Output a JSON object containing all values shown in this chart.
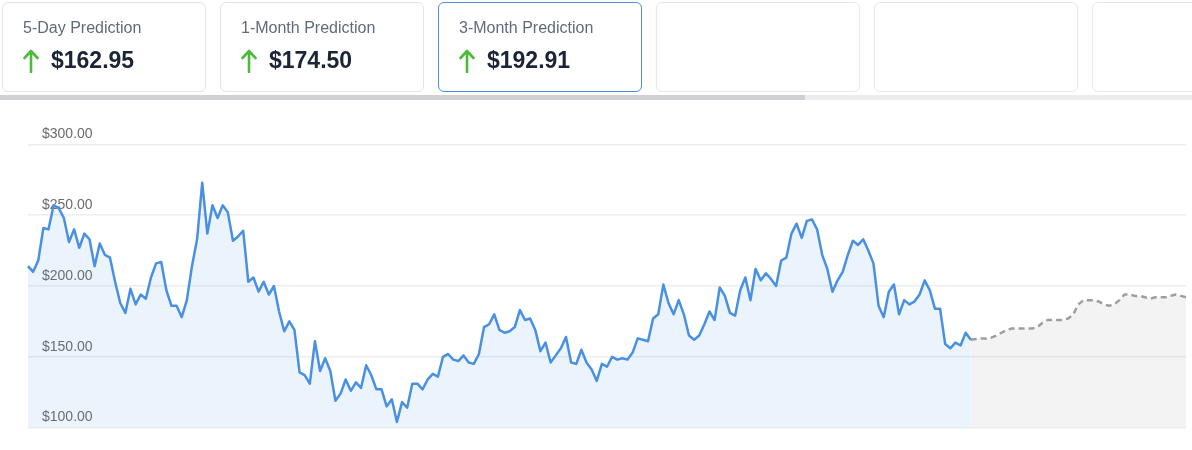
{
  "chart_data": {
    "type": "area",
    "annotations": [
      "5-Day Prediction",
      "$162.95",
      "1-Month Prediction",
      "$174.50",
      "3-Month Prediction",
      "$192.91"
    ],
    "categories": [
      null,
      null,
      null,
      null,
      null,
      null,
      null,
      null,
      null,
      null,
      null,
      null,
      null,
      null,
      null,
      null,
      null,
      null,
      null,
      null,
      null,
      null,
      null,
      null,
      null,
      null,
      null,
      null,
      null,
      null,
      null,
      null,
      null,
      null,
      null,
      null,
      null,
      null,
      null,
      null,
      null,
      null,
      null,
      null,
      null,
      null,
      null,
      null,
      null,
      null,
      null,
      null,
      null,
      null,
      null,
      null,
      null,
      null,
      null,
      null,
      null,
      null,
      null,
      null,
      null,
      null,
      null,
      null,
      null,
      null,
      null,
      null,
      null,
      null,
      null,
      null,
      null,
      null,
      null,
      null,
      null,
      null,
      null,
      null,
      null,
      null,
      null,
      null,
      null,
      null,
      null,
      null,
      null,
      null,
      null,
      null,
      null,
      null,
      null,
      null,
      null,
      null,
      null,
      null,
      null,
      null,
      null,
      null,
      null,
      null,
      null,
      null,
      null,
      null,
      null,
      null,
      null,
      null,
      null,
      null,
      null,
      null,
      null,
      null,
      null,
      null,
      null,
      null,
      null,
      null,
      null,
      null,
      null,
      null,
      null,
      null,
      null,
      null,
      null,
      null,
      null,
      null,
      null,
      null,
      null,
      null,
      null,
      null,
      null,
      null,
      null,
      null,
      null,
      null,
      null,
      null,
      null,
      null,
      null,
      null,
      null,
      null,
      null,
      null,
      null,
      null,
      null,
      null,
      null,
      null,
      null,
      null,
      null,
      null,
      null,
      null,
      null,
      null,
      null,
      null,
      null,
      null,
      null,
      null,
      null,
      null,
      null,
      null,
      null,
      null,
      null,
      null,
      null,
      null,
      null,
      null,
      null,
      null,
      null,
      null,
      null,
      null,
      null,
      null,
      null,
      null,
      null,
      null,
      null,
      null,
      null,
      null,
      null,
      null,
      null,
      null,
      null,
      null,
      null,
      null,
      null,
      null,
      null,
      null,
      null,
      null,
      null
    ],
    "series": [
      {
        "color": "#4a90e2",
        "values": [
          214,
          210,
          218,
          241,
          240,
          257,
          255,
          248,
          231,
          240,
          227,
          237,
          233,
          214,
          230,
          222,
          220,
          203,
          188,
          181,
          198,
          187,
          194,
          191,
          206,
          216,
          217,
          197,
          186,
          186,
          178,
          190,
          214,
          233,
          273,
          237,
          257,
          248,
          257,
          252,
          232,
          235,
          239,
          203,
          206,
          196,
          203,
          194,
          200,
          182,
          168,
          175,
          169,
          139,
          137,
          131,
          161,
          140,
          149,
          140,
          119,
          124,
          134,
          126,
          132,
          128,
          144,
          137,
          127,
          127,
          115,
          120,
          104,
          118,
          114,
          131,
          131,
          127,
          134,
          138,
          136,
          150,
          152,
          148,
          147,
          151,
          146,
          145,
          152,
          171,
          173,
          180,
          169,
          167,
          168,
          171,
          183,
          176,
          177,
          169,
          154,
          160,
          146,
          151,
          156,
          164,
          146,
          145,
          155,
          146,
          141,
          133,
          145,
          143,
          150,
          148,
          149,
          148,
          153,
          163,
          162,
          161,
          177,
          180,
          201,
          188,
          180,
          190,
          180,
          165,
          162,
          165,
          173,
          182,
          176,
          199,
          193,
          181,
          179,
          197,
          206,
          190,
          212,
          204,
          209,
          205,
          200,
          218,
          220,
          237,
          244,
          234,
          246,
          247,
          240,
          222,
          212,
          196,
          204,
          210,
          222,
          232,
          229,
          233,
          225,
          216,
          186,
          178,
          196,
          201,
          180,
          190,
          187,
          189,
          194,
          204,
          197,
          184,
          184,
          159,
          156,
          160,
          158,
          167,
          162,
          null,
          null,
          null,
          null,
          null,
          null,
          null,
          null,
          null,
          null,
          null,
          null,
          null,
          null,
          null,
          null,
          null,
          null,
          null,
          null,
          null,
          null,
          null,
          null,
          null,
          null,
          null,
          null,
          null,
          null,
          null,
          null,
          null,
          null,
          null,
          null,
          null,
          null,
          null,
          null,
          null,
          null
        ]
      },
      {
        "color": "#9e9e9e",
        "line_style": "dashed",
        "values": [
          null,
          null,
          null,
          null,
          null,
          null,
          null,
          null,
          null,
          null,
          null,
          null,
          null,
          null,
          null,
          null,
          null,
          null,
          null,
          null,
          null,
          null,
          null,
          null,
          null,
          null,
          null,
          null,
          null,
          null,
          null,
          null,
          null,
          null,
          null,
          null,
          null,
          null,
          null,
          null,
          null,
          null,
          null,
          null,
          null,
          null,
          null,
          null,
          null,
          null,
          null,
          null,
          null,
          null,
          null,
          null,
          null,
          null,
          null,
          null,
          null,
          null,
          null,
          null,
          null,
          null,
          null,
          null,
          null,
          null,
          null,
          null,
          null,
          null,
          null,
          null,
          null,
          null,
          null,
          null,
          null,
          null,
          null,
          null,
          null,
          null,
          null,
          null,
          null,
          null,
          null,
          null,
          null,
          null,
          null,
          null,
          null,
          null,
          null,
          null,
          null,
          null,
          null,
          null,
          null,
          null,
          null,
          null,
          null,
          null,
          null,
          null,
          null,
          null,
          null,
          null,
          null,
          null,
          null,
          null,
          null,
          null,
          null,
          null,
          null,
          null,
          null,
          null,
          null,
          null,
          null,
          null,
          null,
          null,
          null,
          null,
          null,
          null,
          null,
          null,
          null,
          null,
          null,
          null,
          null,
          null,
          null,
          null,
          null,
          null,
          null,
          null,
          null,
          null,
          null,
          null,
          null,
          null,
          null,
          null,
          null,
          null,
          null,
          null,
          null,
          null,
          null,
          null,
          null,
          null,
          null,
          null,
          null,
          null,
          null,
          null,
          null,
          null,
          null,
          null,
          null,
          null,
          null,
          null,
          162,
          162.5,
          163,
          163,
          163.5,
          165,
          167,
          169,
          170,
          170,
          170,
          170,
          170,
          171,
          174,
          176,
          176,
          176,
          176,
          177,
          180,
          187,
          190,
          190,
          190,
          189,
          187,
          186,
          187,
          190,
          194,
          194,
          193,
          193,
          192,
          191,
          192,
          192,
          192,
          193,
          194,
          193,
          192
        ]
      }
    ],
    "ylim": [
      100,
      300
    ],
    "yticks": [
      {
        "value": 100,
        "label": "$100.00"
      },
      {
        "value": 150,
        "label": "$150.00"
      },
      {
        "value": 200,
        "label": "$200.00"
      },
      {
        "value": 250,
        "label": "$250.00"
      },
      {
        "value": 300,
        "label": "$300.00"
      }
    ],
    "grid": "y",
    "legend": false,
    "marker": "none",
    "tick_labels": "y"
  }
}
